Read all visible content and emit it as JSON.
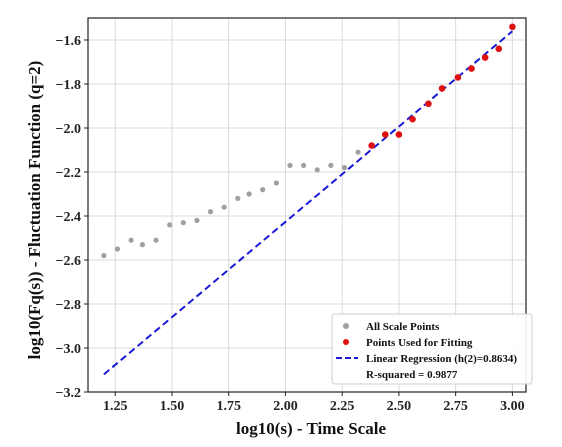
{
  "chart_data": {
    "type": "scatter",
    "title": "",
    "xlabel": "log10(s) - Time Scale",
    "ylabel": "log10(Fq(s)) - Fluctuation Function (q=2)",
    "xlim": [
      1.13,
      3.06
    ],
    "ylim": [
      -3.2,
      -1.5
    ],
    "xticks": [
      1.25,
      1.5,
      1.75,
      2.0,
      2.25,
      2.5,
      2.75,
      3.0
    ],
    "xtick_labels": [
      "1.25",
      "1.50",
      "1.75",
      "2.00",
      "2.25",
      "2.50",
      "2.75",
      "3.00"
    ],
    "yticks": [
      -3.2,
      -3.0,
      -2.8,
      -2.6,
      -2.4,
      -2.2,
      -2.0,
      -1.8,
      -1.6
    ],
    "ytick_labels": [
      "−3.2",
      "−3.0",
      "−2.8",
      "−2.6",
      "−2.4",
      "−2.2",
      "−2.0",
      "−1.8",
      "−1.6"
    ],
    "grid": true,
    "legend_position": "bottom-right",
    "series": [
      {
        "name": "All Scale Points",
        "kind": "scatter",
        "color": "#a0a0a0",
        "points": [
          [
            1.2,
            -2.58
          ],
          [
            1.26,
            -2.55
          ],
          [
            1.32,
            -2.51
          ],
          [
            1.37,
            -2.53
          ],
          [
            1.43,
            -2.51
          ],
          [
            1.49,
            -2.44
          ],
          [
            1.55,
            -2.43
          ],
          [
            1.61,
            -2.42
          ],
          [
            1.67,
            -2.38
          ],
          [
            1.73,
            -2.36
          ],
          [
            1.79,
            -2.32
          ],
          [
            1.84,
            -2.3
          ],
          [
            1.9,
            -2.28
          ],
          [
            1.96,
            -2.25
          ],
          [
            2.02,
            -2.17
          ],
          [
            2.08,
            -2.17
          ],
          [
            2.14,
            -2.19
          ],
          [
            2.2,
            -2.17
          ],
          [
            2.26,
            -2.18
          ],
          [
            2.32,
            -2.11
          ]
        ]
      },
      {
        "name": "Points Used for Fitting",
        "kind": "scatter",
        "color": "#e01010",
        "points": [
          [
            2.38,
            -2.08
          ],
          [
            2.44,
            -2.03
          ],
          [
            2.5,
            -2.03
          ],
          [
            2.56,
            -1.96
          ],
          [
            2.63,
            -1.89
          ],
          [
            2.69,
            -1.82
          ],
          [
            2.76,
            -1.77
          ],
          [
            2.82,
            -1.73
          ],
          [
            2.88,
            -1.68
          ],
          [
            2.94,
            -1.64
          ],
          [
            3.0,
            -1.54
          ]
        ]
      },
      {
        "name": "Linear Regression (h(2)=0.8634)",
        "kind": "line",
        "color": "#1a1ad6",
        "dash": "dashed",
        "points": [
          [
            1.2,
            -3.12
          ],
          [
            3.0,
            -1.56
          ]
        ]
      }
    ],
    "legend": {
      "entries": [
        {
          "label": "All Scale Points",
          "marker": "dot",
          "color": "#a0a0a0"
        },
        {
          "label": "Points Used for Fitting",
          "marker": "dot",
          "color": "#e01010"
        },
        {
          "label": "Linear Regression (h(2)=0.8634)",
          "marker": "dash",
          "color": "#1a1ad6"
        },
        {
          "label": "R-squared = 0.9877",
          "marker": "none",
          "color": "#ffffff"
        }
      ]
    }
  }
}
